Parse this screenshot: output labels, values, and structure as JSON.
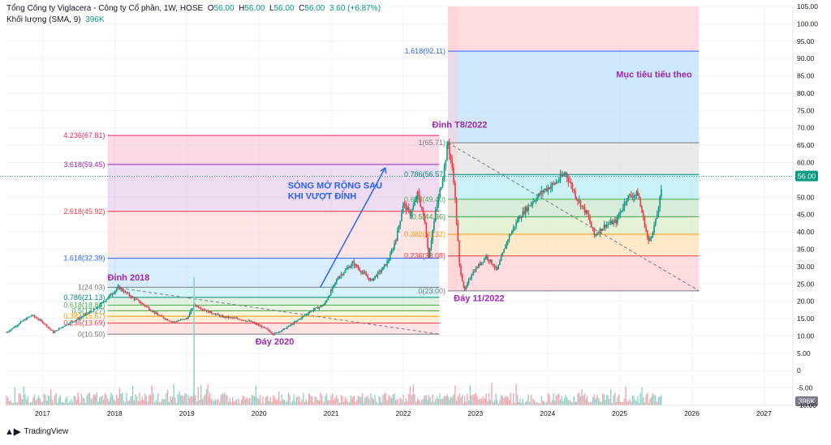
{
  "header": {
    "symbol": "Tổng Công ty Viglacera - Công ty Cổ phần, 1W, HOSE",
    "open_label": "O",
    "open": "56.00",
    "high_label": "H",
    "high": "56.00",
    "low_label": "L",
    "low": "56.00",
    "close_label": "C",
    "close": "56.00",
    "change": "3.60 (+6.87%)",
    "volume_indicator": "Khối lượng (SMA, 9)",
    "volume_value": "396K"
  },
  "footer": {
    "brand": "TradingView"
  },
  "colors": {
    "up": "#089981",
    "down": "#f23645",
    "blue_label": "#2962ff",
    "annot_purple": "#9c27b0"
  },
  "chart_data": {
    "type": "candlestick",
    "y_axis": {
      "min": -10,
      "max": 105,
      "ticks": [
        "105.00",
        "100.00",
        "95.00",
        "90.00",
        "85.00",
        "80.00",
        "75.00",
        "70.00",
        "65.00",
        "60.00",
        "55.00",
        "50.00",
        "45.00",
        "40.00",
        "35.00",
        "30.00",
        "25.00",
        "20.00",
        "15.00",
        "10.00",
        "5.00",
        "0",
        "-5.00",
        "-10.00"
      ],
      "tick_values": [
        105,
        100,
        95,
        90,
        85,
        80,
        75,
        70,
        65,
        60,
        55,
        50,
        45,
        40,
        35,
        30,
        25,
        20,
        15,
        10,
        5,
        0,
        -5,
        -10
      ]
    },
    "x_axis": {
      "min": 2016.5,
      "max": 2027.4,
      "ticks": [
        "2017",
        "2018",
        "2019",
        "2020",
        "2021",
        "2022",
        "2023",
        "2024",
        "2025",
        "2026",
        "2027"
      ],
      "tick_values": [
        2017,
        2018,
        2019,
        2020,
        2021,
        2022,
        2023,
        2024,
        2025,
        2026,
        2027
      ]
    },
    "price_marker": {
      "value": 56.0,
      "label": "56.00"
    },
    "volume_marker": "396K",
    "price_path": [
      [
        2016.5,
        11
      ],
      [
        2016.7,
        14
      ],
      [
        2016.85,
        16
      ],
      [
        2017.0,
        14
      ],
      [
        2017.15,
        11
      ],
      [
        2017.3,
        13
      ],
      [
        2017.5,
        15
      ],
      [
        2017.75,
        18
      ],
      [
        2017.95,
        22
      ],
      [
        2018.05,
        24
      ],
      [
        2018.25,
        21
      ],
      [
        2018.4,
        19
      ],
      [
        2018.6,
        16
      ],
      [
        2018.8,
        14
      ],
      [
        2019.0,
        15
      ],
      [
        2019.1,
        19
      ],
      [
        2019.3,
        17
      ],
      [
        2019.5,
        15.5
      ],
      [
        2019.7,
        15
      ],
      [
        2019.9,
        14
      ],
      [
        2020.1,
        12
      ],
      [
        2020.2,
        10.5
      ],
      [
        2020.35,
        12
      ],
      [
        2020.5,
        14
      ],
      [
        2020.7,
        17
      ],
      [
        2020.9,
        19
      ],
      [
        2021.0,
        23
      ],
      [
        2021.1,
        27
      ],
      [
        2021.3,
        31
      ],
      [
        2021.45,
        28
      ],
      [
        2021.55,
        26
      ],
      [
        2021.7,
        29
      ],
      [
        2021.8,
        32
      ],
      [
        2021.9,
        38
      ],
      [
        2022.0,
        48
      ],
      [
        2022.1,
        45
      ],
      [
        2022.2,
        51
      ],
      [
        2022.3,
        43
      ],
      [
        2022.35,
        33
      ],
      [
        2022.45,
        46
      ],
      [
        2022.55,
        56
      ],
      [
        2022.62,
        65.7
      ],
      [
        2022.7,
        55
      ],
      [
        2022.78,
        30
      ],
      [
        2022.85,
        23
      ],
      [
        2022.95,
        28
      ],
      [
        2023.15,
        33
      ],
      [
        2023.3,
        29
      ],
      [
        2023.45,
        38
      ],
      [
        2023.6,
        44
      ],
      [
        2023.8,
        49
      ],
      [
        2023.95,
        52
      ],
      [
        2024.1,
        54
      ],
      [
        2024.25,
        57
      ],
      [
        2024.4,
        50
      ],
      [
        2024.55,
        45
      ],
      [
        2024.65,
        39
      ],
      [
        2024.8,
        42
      ],
      [
        2024.95,
        43
      ],
      [
        2025.1,
        50
      ],
      [
        2025.25,
        51
      ],
      [
        2025.4,
        37
      ],
      [
        2025.5,
        43
      ],
      [
        2025.58,
        52
      ]
    ],
    "fib_sets": [
      {
        "name": "fib-2018-2020",
        "x_start": 2017.9,
        "x_end": 2022.5,
        "levels": [
          {
            "label": "1(24.03)",
            "value": 24.03,
            "color": "#787b86"
          },
          {
            "label": "0.786(21.13)",
            "value": 21.13,
            "color": "#00897b"
          },
          {
            "label": "0.618(18.86)",
            "value": 18.86,
            "color": "#4caf50"
          },
          {
            "label": "0.5(17.27)",
            "value": 17.27,
            "color": "#43a047"
          },
          {
            "label": "0.382(15.67)",
            "value": 15.67,
            "color": "#ff9800"
          },
          {
            "label": "0.236(13.69)",
            "value": 13.69,
            "color": "#f23645"
          },
          {
            "label": "0(10.50)",
            "value": 10.5,
            "color": "#787b86"
          }
        ]
      },
      {
        "name": "fib-extension",
        "x_start": 2017.9,
        "x_end": 2022.5,
        "levels": [
          {
            "label": "1.618(32.39)",
            "value": 32.39,
            "color": "#2962ff"
          },
          {
            "label": "2.618(45.92)",
            "value": 45.92,
            "color": "#f23645"
          },
          {
            "label": "3.618(59.45)",
            "value": 59.45,
            "color": "#9c27b0"
          },
          {
            "label": "4.236(67.81)",
            "value": 67.81,
            "color": "#e91e63"
          }
        ]
      },
      {
        "name": "fib-2022",
        "x_start": 2022.62,
        "x_end": 2026.1,
        "levels": [
          {
            "label": "1(65.71)",
            "value": 65.71,
            "color": "#787b86"
          },
          {
            "label": "0.786(56.57)",
            "value": 56.57,
            "color": "#00897b"
          },
          {
            "label": "0.618(49.40)",
            "value": 49.4,
            "color": "#4caf50"
          },
          {
            "label": "0.5(44.36)",
            "value": 44.36,
            "color": "#43a047"
          },
          {
            "label": "0.382(39.32)",
            "value": 39.32,
            "color": "#ff9800"
          },
          {
            "label": "0.236(33.08)",
            "value": 33.08,
            "color": "#f23645"
          },
          {
            "label": "0(23.00)",
            "value": 23.0,
            "color": "#787b86"
          },
          {
            "label": "1.618(92.11)",
            "value": 92.11,
            "color": "#2962ff"
          }
        ]
      }
    ],
    "annotations": [
      {
        "text": "Đỉnh 2018",
        "x": 2017.9,
        "y": 26.0,
        "color": "#9c27b0"
      },
      {
        "text": "Đáy 2020",
        "x": 2019.95,
        "y": 7.5,
        "color": "#9c27b0"
      },
      {
        "text": "Đỉnh T8/2022",
        "x": 2022.4,
        "y": 70.0,
        "color": "#9c27b0"
      },
      {
        "text": "Đáy 11/2022",
        "x": 2022.7,
        "y": 20.0,
        "color": "#9c27b0"
      },
      {
        "text": "Mục tiêu tiếu theo",
        "x": 2024.95,
        "y": 84.5,
        "color": "#9c27b0"
      },
      {
        "text": "SÓNG MỞ RỘNG SAU",
        "x": 2020.4,
        "y": 52.5,
        "color": "#2962ff"
      },
      {
        "text": "KHI VƯỢT ĐỈNH",
        "x": 2020.4,
        "y": 49.5,
        "color": "#2962ff"
      }
    ]
  }
}
